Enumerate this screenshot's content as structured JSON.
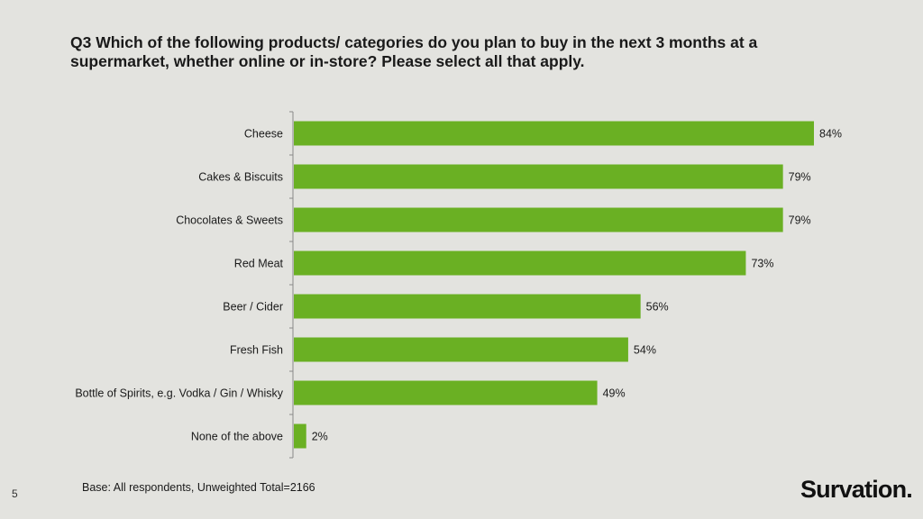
{
  "title": "Q3 Which of the following products/ categories do you plan to buy in the next 3 months at a supermarket, whether online or in-store? Please select all that apply.",
  "base_note": "Base: All respondents, Unweighted Total=2166",
  "page_number": "5",
  "brand": "Survation.",
  "colors": {
    "bar": "#6ab023",
    "background": "#e3e3df",
    "axis": "#8a8a8a"
  },
  "chart_data": {
    "type": "bar",
    "orientation": "horizontal",
    "categories": [
      "Cheese",
      "Cakes & Biscuits",
      "Chocolates & Sweets",
      "Red Meat",
      "Beer / Cider",
      "Fresh Fish",
      "Bottle of Spirits, e.g. Vodka / Gin / Whisky",
      "None of the above"
    ],
    "values": [
      84,
      79,
      79,
      73,
      56,
      54,
      49,
      2
    ],
    "value_labels": [
      "84%",
      "79%",
      "79%",
      "73%",
      "56%",
      "54%",
      "49%",
      "2%"
    ],
    "unit": "%",
    "xlim": [
      0,
      84
    ],
    "grid": false,
    "legend": "none"
  }
}
